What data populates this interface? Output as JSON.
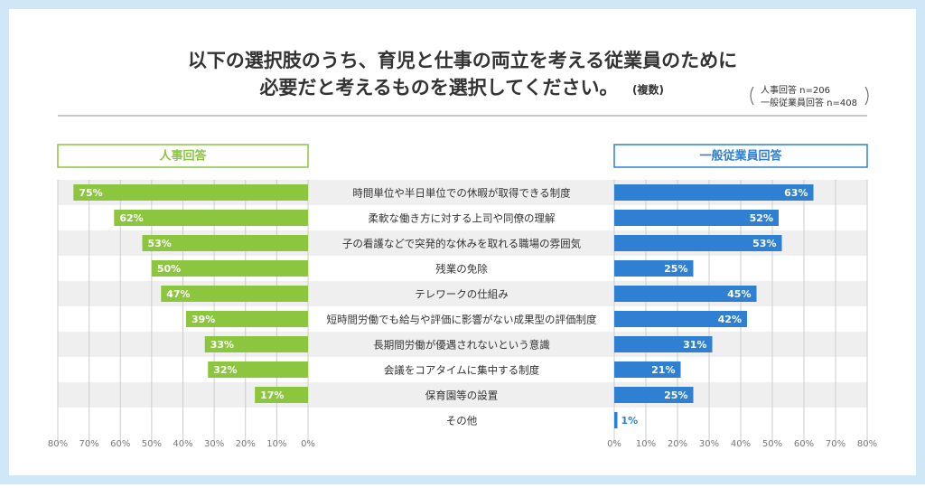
{
  "chart_data": {
    "type": "bar",
    "title": [
      "以下の選択肢のうち、育児と仕事の両立を考える従業員のために",
      "必要だと考えるものを選択してください。"
    ],
    "subtitle": "(複数)",
    "sample_notes": [
      "人事回答 n=206",
      "一般従業員回答 n=408"
    ],
    "categories": [
      "時間単位や半日単位での休暇が取得できる制度",
      "柔軟な働き方に対する上司や同僚の理解",
      "子の看護などで突発的な休みを取れる職場の雰囲気",
      "残業の免除",
      "テレワークの仕組み",
      "短時間労働でも給与や評価に影響がない成果型の評価制度",
      "長期間労働が優遇されないという意識",
      "会議をコアタイムに集中する制度",
      "保育園等の設置",
      "その他"
    ],
    "grid": true,
    "series": [
      {
        "name": "人事回答",
        "color": "#8cc63f",
        "values": [
          75,
          62,
          53,
          50,
          47,
          39,
          33,
          32,
          17,
          null
        ],
        "value_labels": [
          "75%",
          "62%",
          "53%",
          "50%",
          "47%",
          "39%",
          "33%",
          "32%",
          "17%",
          null
        ],
        "xlim": [
          80,
          0
        ],
        "xticks": [
          {
            "value": 80,
            "label": "80%"
          },
          {
            "value": 70,
            "label": "70%"
          },
          {
            "value": 60,
            "label": "60%"
          },
          {
            "value": 50,
            "label": "50%"
          },
          {
            "value": 40,
            "label": "40%"
          },
          {
            "value": 30,
            "label": "30%"
          },
          {
            "value": 20,
            "label": "20%"
          },
          {
            "value": 10,
            "label": "10%"
          },
          {
            "value": 0,
            "label": "0%"
          }
        ]
      },
      {
        "name": "一般従業員回答",
        "color": "#2f80d2",
        "values": [
          63,
          52,
          53,
          25,
          45,
          42,
          31,
          21,
          25,
          1
        ],
        "value_labels": [
          "63%",
          "52%",
          "53%",
          "25%",
          "45%",
          "42%",
          "31%",
          "21%",
          "25%",
          "1%"
        ],
        "xlim": [
          0,
          80
        ],
        "xticks": [
          {
            "value": 0,
            "label": "0%"
          },
          {
            "value": 10,
            "label": "10%"
          },
          {
            "value": 20,
            "label": "20%"
          },
          {
            "value": 30,
            "label": "30%"
          },
          {
            "value": 40,
            "label": "40%"
          },
          {
            "value": 50,
            "label": "50%"
          },
          {
            "value": 60,
            "label": "60%"
          },
          {
            "value": 70,
            "label": "70%"
          },
          {
            "value": 80,
            "label": "80%"
          }
        ]
      }
    ]
  }
}
